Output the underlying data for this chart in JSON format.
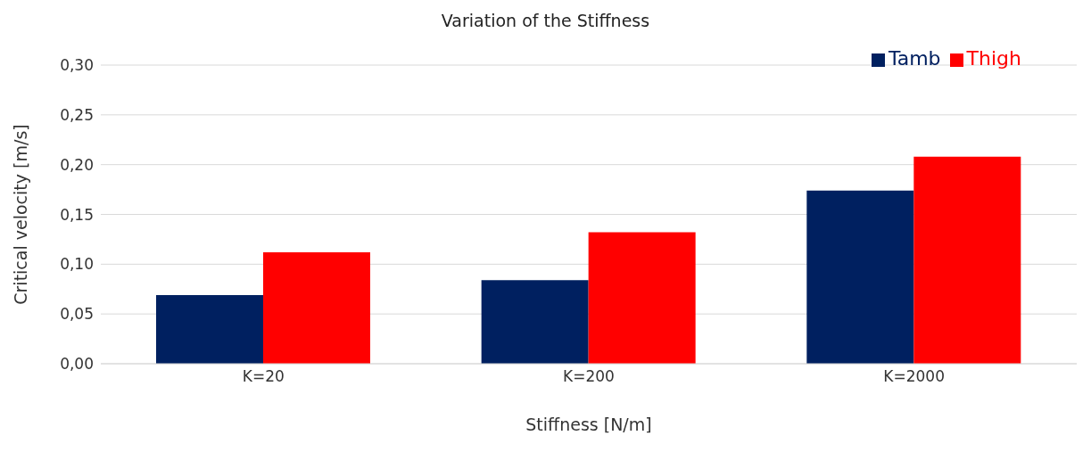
{
  "chart_data": {
    "type": "bar",
    "title": "Variation of the Stiffness",
    "xlabel": "Stiffness [N/m]",
    "ylabel": "Critical velocity [m/s]",
    "categories": [
      "K=20",
      "K=200",
      "K=2000"
    ],
    "series": [
      {
        "name": "Tamb",
        "color": "#002060",
        "values": [
          0.069,
          0.084,
          0.174
        ]
      },
      {
        "name": "Thigh",
        "color": "#ff0000",
        "values": [
          0.112,
          0.132,
          0.208
        ]
      }
    ],
    "ylim": [
      0,
      0.3
    ],
    "yticks": [
      {
        "value": 0,
        "label": "0,00"
      },
      {
        "value": 0.05,
        "label": "0,05"
      },
      {
        "value": 0.1,
        "label": "0,10"
      },
      {
        "value": 0.15,
        "label": "0,15"
      },
      {
        "value": 0.2,
        "label": "0,20"
      },
      {
        "value": 0.25,
        "label": "0,25"
      },
      {
        "value": 0.3,
        "label": "0,30"
      }
    ],
    "grid": "y",
    "legend": "top right"
  }
}
